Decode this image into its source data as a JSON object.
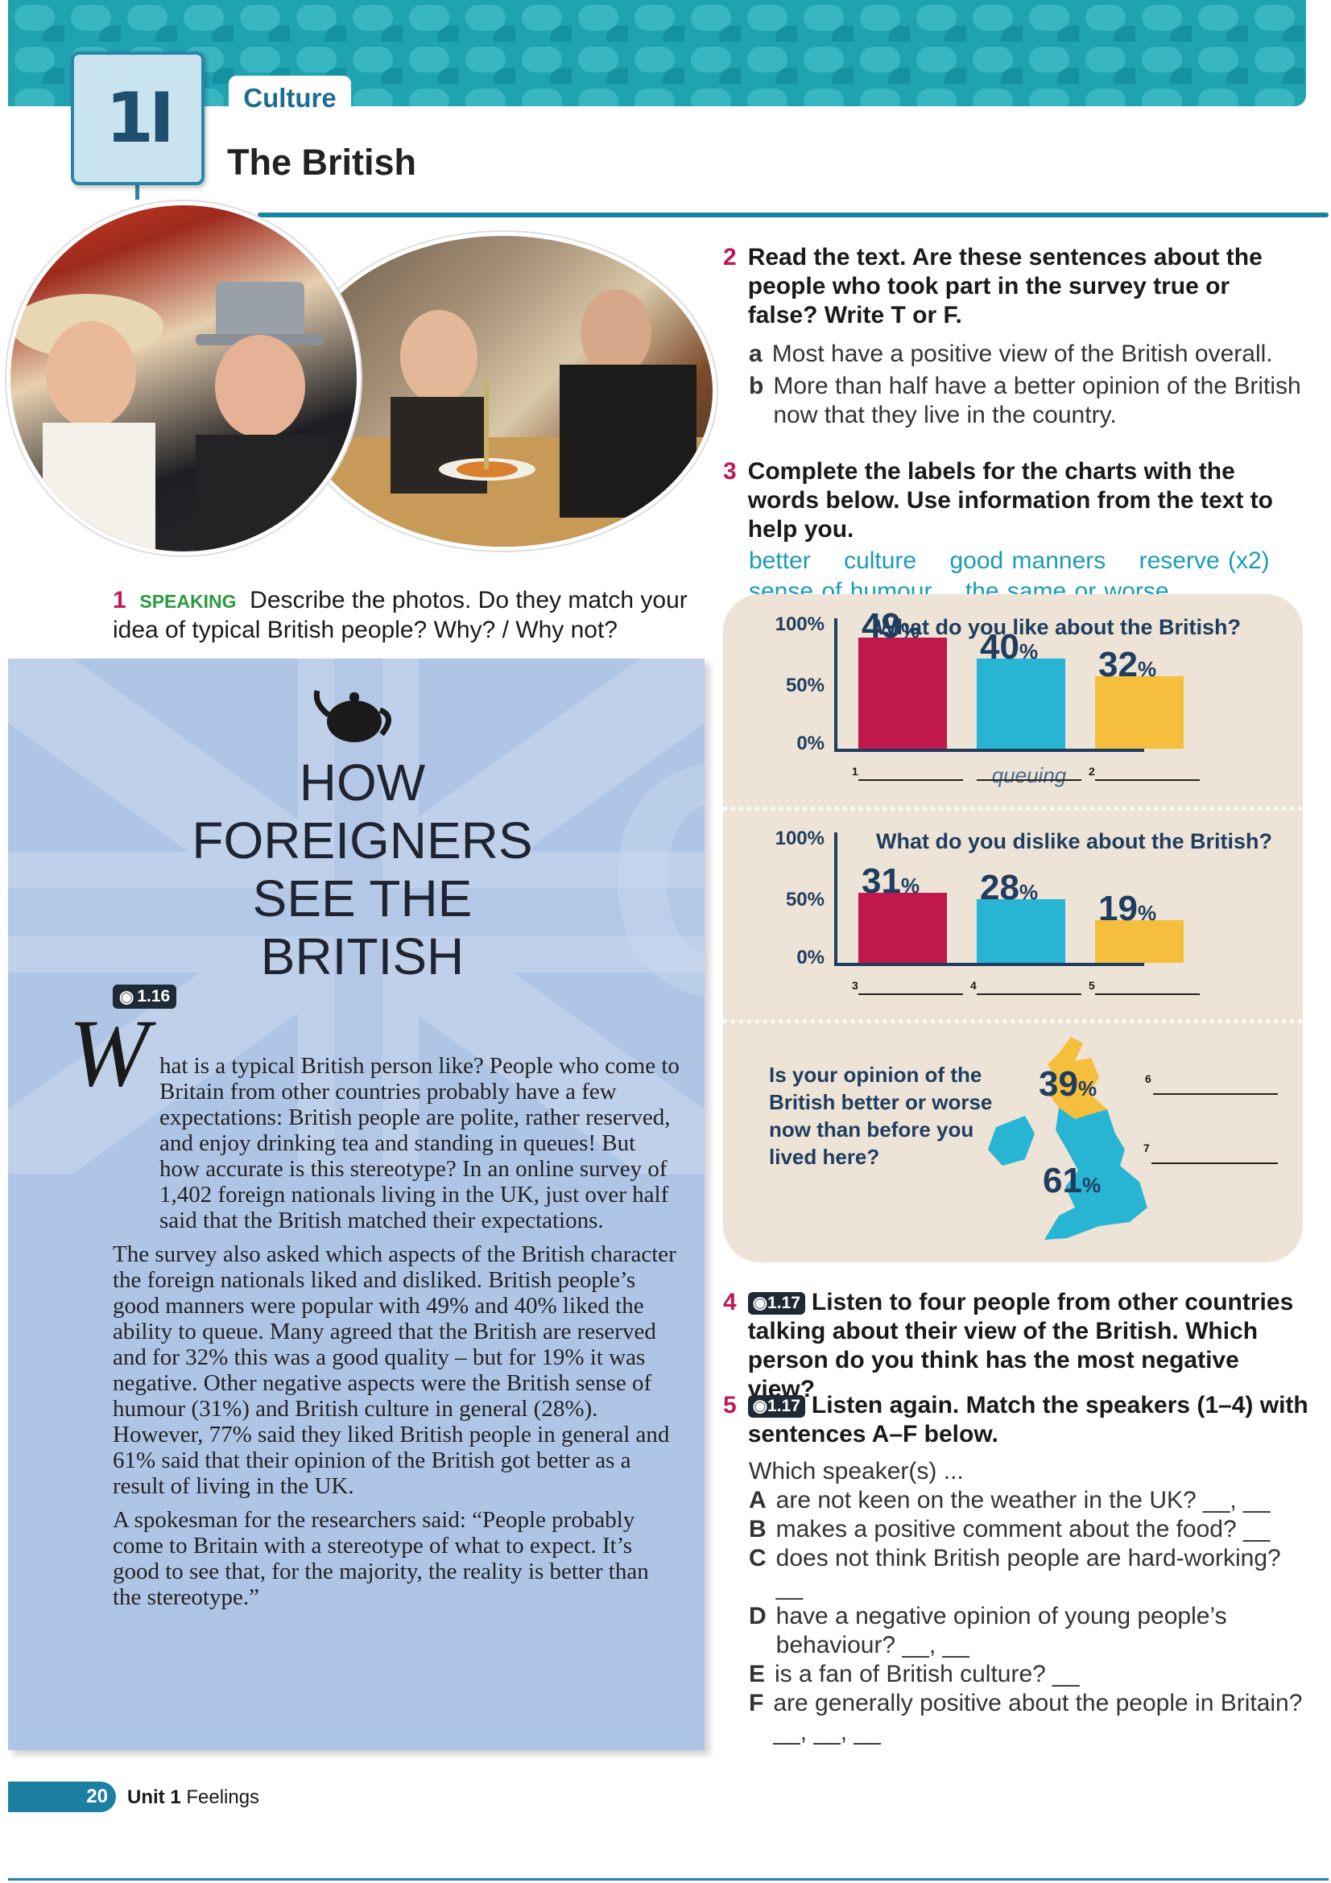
{
  "header": {
    "unit_code": "1I",
    "section": "Culture",
    "title": "The British"
  },
  "ex1": {
    "number": "1",
    "tag": "SPEAKING",
    "text": "Describe the photos. Do they match your idea of typical British people? Why? / Why not?"
  },
  "reading": {
    "title_lines": [
      "HOW",
      "FOREIGNERS",
      "SEE THE",
      "BRITISH"
    ],
    "audio_track": "1.16",
    "dropcap": "W",
    "paragraphs": [
      "hat is a typical British person like? People who come to Britain from other countries probably have a few expectations: British people are polite, rather reserved, and enjoy drinking tea and standing in queues! But how accurate is this stereotype? In an online survey of 1,402 foreign nationals living in the UK, just over half said that the British matched their expectations.",
      "The survey also asked which aspects of the British character the foreign nationals liked and disliked. British people’s good manners were popular with 49% and 40% liked the ability to queue. Many agreed that the British are reserved and for 32% this was a good quality – but for 19% it was negative. Other negative aspects were the British sense of humour (31%) and British culture in general (28%). However, 77% said they liked British people in general and 61% said that their opinion of the British got better as a result of living in the UK.",
      "A spokesman for the researchers said: “People probably come to Britain with a stereotype of what to expect. It’s good to see that, for the majority, the reality is better than the stereotype.”"
    ]
  },
  "ex2": {
    "number": "2",
    "instruction": "Read the text. Are these sentences about the people who took part in the survey true or false? Write T or F.",
    "items": [
      {
        "letter": "a",
        "text": "Most have a positive view of the British overall."
      },
      {
        "letter": "b",
        "text": "More than half have a better opinion of the British now that they live in the country."
      }
    ]
  },
  "ex3": {
    "number": "3",
    "instruction": "Complete the labels for the charts with the words below. Use information from the text to help you.",
    "words": [
      "better",
      "culture",
      "good manners",
      "reserve (x2)",
      "sense of humour",
      "the same or worse"
    ]
  },
  "chart_data": [
    {
      "type": "bar",
      "title": "What do you like about the British?",
      "y_ticks": [
        "100%",
        "50%",
        "0%"
      ],
      "ylim": [
        0,
        100
      ],
      "categories": [
        "1",
        "queuing",
        "2"
      ],
      "values": [
        49,
        40,
        32
      ],
      "value_labels": [
        "49",
        "40",
        "32"
      ],
      "unit": "%",
      "colors": [
        "#c0184a",
        "#27b5d3",
        "#f5be3c"
      ]
    },
    {
      "type": "bar",
      "title": "What do you dislike about the British?",
      "y_ticks": [
        "100%",
        "50%",
        "0%"
      ],
      "ylim": [
        0,
        100
      ],
      "categories": [
        "3",
        "4",
        "5"
      ],
      "values": [
        31,
        28,
        19
      ],
      "value_labels": [
        "31",
        "28",
        "19"
      ],
      "unit": "%",
      "colors": [
        "#c0184a",
        "#27b5d3",
        "#f5be3c"
      ]
    },
    {
      "type": "pie",
      "question": "Is your opinion of the British better or worse now than before you lived here?",
      "values": [
        39,
        61
      ],
      "value_labels": [
        "39",
        "61"
      ],
      "unit": "%",
      "answer_numbers": [
        "6",
        "7"
      ],
      "colors": [
        "#f5be3c",
        "#27b5d3"
      ]
    }
  ],
  "ex4": {
    "number": "4",
    "audio_track": "1.17",
    "instruction": "Listen to four people from other countries talking about their view of the British. Which person do you think has the most negative view?"
  },
  "ex5": {
    "number": "5",
    "audio_track": "1.17",
    "instruction": "Listen again. Match the speakers (1–4) with sentences A–F below.",
    "lead": "Which speaker(s) ...",
    "items": [
      {
        "letter": "A",
        "text": "are not keen on the weather in the UK? __, __"
      },
      {
        "letter": "B",
        "text": "makes a positive comment about the food? __"
      },
      {
        "letter": "C",
        "text": "does not think British people are hard-working? __"
      },
      {
        "letter": "D",
        "text": "have a negative opinion of young people’s behaviour? __, __"
      },
      {
        "letter": "E",
        "text": "is a fan of British culture? __"
      },
      {
        "letter": "F",
        "text": "are generally positive about the people in Britain? __, __, __"
      }
    ]
  },
  "footer": {
    "page": "20",
    "unit": "Unit 1",
    "unit_title": "Feelings"
  }
}
